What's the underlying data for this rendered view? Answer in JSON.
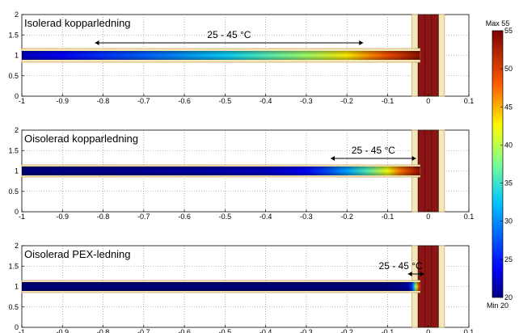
{
  "chart_data": [
    {
      "type": "heatmap",
      "title": "Isolerad kopparledning",
      "annotation": "25 - 45 °C",
      "annotation_range_x": [
        -0.82,
        -0.16
      ],
      "xlim": [
        -1,
        0.1
      ],
      "ylim": [
        0,
        2
      ],
      "xticks": [
        "-1",
        "-0.9",
        "-0.8",
        "-0.7",
        "-0.6",
        "-0.5",
        "-0.4",
        "-0.3",
        "-0.2",
        "-0.1",
        "0",
        "0.1"
      ],
      "yticks": [
        "0",
        "0.5",
        "1",
        "1.5",
        "2"
      ],
      "grid": true,
      "insulated": true,
      "pipe_y": 1,
      "pipe_temperature_profile": {
        "x": [
          -1,
          -0.9,
          -0.7,
          -0.5,
          -0.4,
          -0.3,
          -0.2,
          -0.15,
          -0.1,
          -0.05,
          -0.02
        ],
        "temp": [
          22,
          24,
          28,
          33,
          36,
          39,
          43,
          46,
          49,
          52,
          54
        ]
      }
    },
    {
      "type": "heatmap",
      "title": "Oisolerad kopparledning",
      "annotation": "25 - 45 °C",
      "annotation_range_x": [
        -0.24,
        -0.03
      ],
      "xlim": [
        -1,
        0.1
      ],
      "ylim": [
        0,
        2
      ],
      "xticks": [
        "-1",
        "-0.9",
        "-0.8",
        "-0.7",
        "-0.6",
        "-0.5",
        "-0.4",
        "-0.3",
        "-0.2",
        "-0.1",
        "0",
        "0.1"
      ],
      "yticks": [
        "0",
        "0.5",
        "1",
        "1.5",
        "2"
      ],
      "grid": true,
      "insulated": false,
      "pipe_y": 1,
      "pipe_temperature_profile": {
        "x": [
          -1,
          -0.6,
          -0.4,
          -0.3,
          -0.25,
          -0.2,
          -0.15,
          -0.1,
          -0.07,
          -0.04,
          -0.02
        ],
        "temp": [
          20,
          21,
          22,
          24,
          27,
          31,
          36,
          42,
          47,
          51,
          54
        ]
      }
    },
    {
      "type": "heatmap",
      "title": "Oisolerad PEX-ledning",
      "annotation": "25 - 45 °C",
      "annotation_range_x": [
        -0.05,
        -0.01
      ],
      "xlim": [
        -1,
        0.1
      ],
      "ylim": [
        0,
        2
      ],
      "xticks": [
        "-1",
        "-0.9",
        "-0.8",
        "-0.7",
        "-0.6",
        "-0.5",
        "-0.4",
        "-0.3",
        "-0.2",
        "-0.1",
        "0",
        "0.1"
      ],
      "yticks": [
        "0",
        "0.5",
        "1",
        "1.5",
        "2"
      ],
      "grid": true,
      "insulated": false,
      "pipe_y": 1,
      "pipe_temperature_profile": {
        "x": [
          -1,
          -0.5,
          -0.1,
          -0.05,
          -0.04,
          -0.035,
          -0.03,
          -0.025,
          -0.02
        ],
        "temp": [
          20,
          20,
          20,
          21,
          26,
          33,
          40,
          47,
          54
        ]
      }
    }
  ],
  "colorbar": {
    "min": 20,
    "max": 55,
    "min_label": "Min 20",
    "max_label": "Max 55",
    "ticks": [
      "20",
      "25",
      "30",
      "35",
      "40",
      "45",
      "50",
      "55"
    ]
  },
  "colors": {
    "wall_dark": "#8c1414",
    "wall_outline": "#1a1a1a",
    "insulation": "#f6e7b8",
    "insulation_outline": "#c9a86a",
    "grid": "#777777"
  }
}
